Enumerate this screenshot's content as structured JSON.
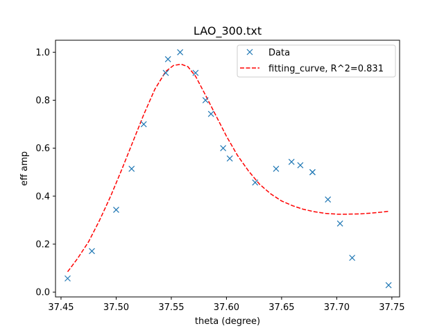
{
  "chart_data": {
    "type": "scatter",
    "title": "LAO_300.txt",
    "xlabel": "theta (degree)",
    "ylabel": "eff amp",
    "xlim": [
      37.445,
      37.757
    ],
    "ylim": [
      -0.02,
      1.05
    ],
    "xticks": [
      37.45,
      37.5,
      37.55,
      37.6,
      37.65,
      37.7,
      37.75
    ],
    "xtick_labels": [
      "37.45",
      "37.50",
      "37.55",
      "37.60",
      "37.65",
      "37.70",
      "37.75"
    ],
    "yticks": [
      0.0,
      0.2,
      0.4,
      0.6,
      0.8,
      1.0
    ],
    "ytick_labels": [
      "0.0",
      "0.2",
      "0.4",
      "0.6",
      "0.8",
      "1.0"
    ],
    "grid": false,
    "legend_position": "top-right",
    "colors": {
      "data": "#1f77b4",
      "fit": "#ff0000"
    },
    "series": [
      {
        "name": "Data",
        "kind": "scatter",
        "marker": "x",
        "x": [
          37.456,
          37.478,
          37.5,
          37.514,
          37.525,
          37.545,
          37.547,
          37.558,
          37.572,
          37.581,
          37.586,
          37.597,
          37.603,
          37.626,
          37.645,
          37.659,
          37.667,
          37.678,
          37.678,
          37.692,
          37.703,
          37.714,
          37.747
        ],
        "y": [
          0.057,
          0.171,
          0.343,
          0.514,
          0.7,
          0.914,
          0.971,
          1.0,
          0.914,
          0.8,
          0.743,
          0.6,
          0.557,
          0.457,
          0.514,
          0.543,
          0.529,
          0.5,
          0.5,
          0.386,
          0.286,
          0.143,
          0.029
        ]
      },
      {
        "name": "fitting_curve, R^2=0.831",
        "kind": "line",
        "style": "dashed",
        "x": [
          37.456,
          37.465,
          37.475,
          37.485,
          37.495,
          37.505,
          37.515,
          37.525,
          37.535,
          37.545,
          37.552,
          37.559,
          37.565,
          37.572,
          37.58,
          37.59,
          37.6,
          37.61,
          37.62,
          37.63,
          37.64,
          37.65,
          37.66,
          37.67,
          37.68,
          37.69,
          37.7,
          37.71,
          37.72,
          37.73,
          37.74,
          37.747
        ],
        "y": [
          0.085,
          0.14,
          0.21,
          0.3,
          0.4,
          0.51,
          0.625,
          0.74,
          0.845,
          0.92,
          0.945,
          0.95,
          0.94,
          0.9,
          0.83,
          0.74,
          0.65,
          0.57,
          0.505,
          0.45,
          0.41,
          0.38,
          0.36,
          0.345,
          0.335,
          0.328,
          0.325,
          0.325,
          0.326,
          0.329,
          0.333,
          0.337
        ]
      }
    ]
  }
}
